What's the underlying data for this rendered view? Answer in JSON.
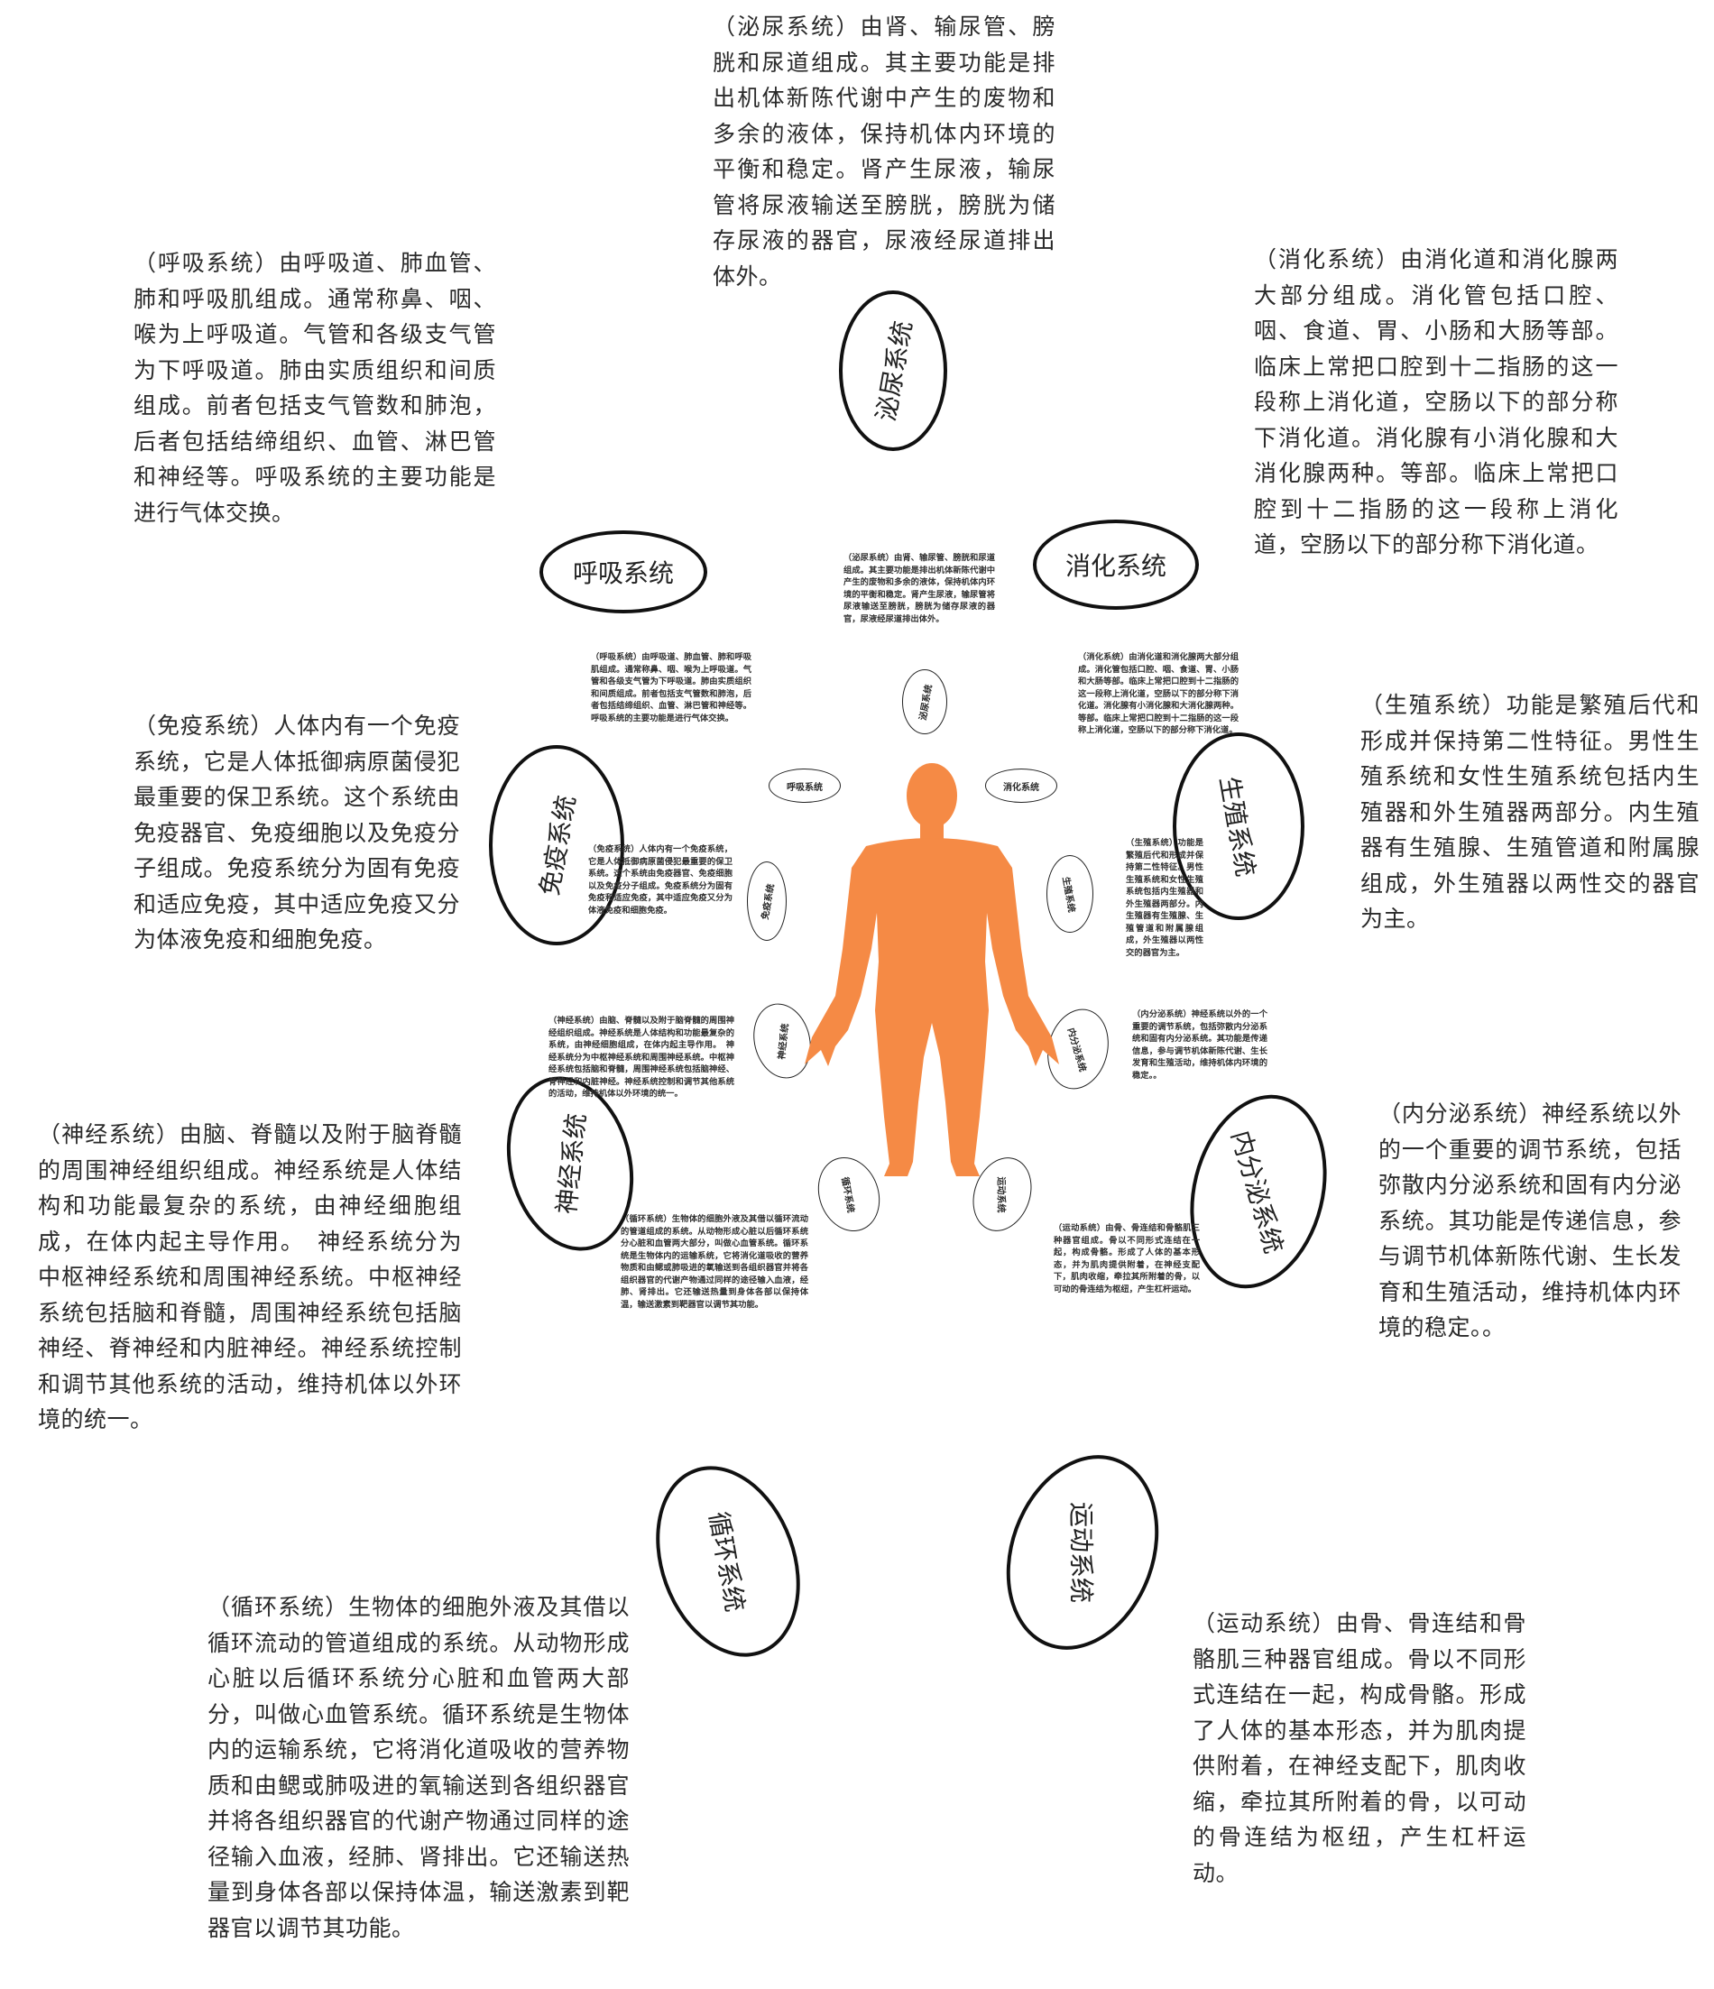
{
  "systems": {
    "urinary": {
      "label": "泌尿系统",
      "desc": "（泌尿系统）由肾、输尿管、膀胱和尿道组成。其主要功能是排出机体新陈代谢中产生的废物和多余的液体，保持机体内环境的平衡和稳定。肾产生尿液，输尿管将尿液输送至膀胱，膀胱为储存尿液的器官，尿液经尿道排出体外。"
    },
    "digestive": {
      "label": "消化系统",
      "desc": "（消化系统）由消化道和消化腺两大部分组成。消化管包括口腔、咽、食道、胃、小肠和大肠等部。临床上常把口腔到十二指肠的这一段称上消化道，空肠以下的部分称下消化道。消化腺有小消化腺和大消化腺两种。等部。临床上常把口腔到十二指肠的这一段称上消化道，空肠以下的部分称下消化道。"
    },
    "respiratory": {
      "label": "呼吸系统",
      "desc": "（呼吸系统）由呼吸道、肺血管、肺和呼吸肌组成。通常称鼻、咽、喉为上呼吸道。气管和各级支气管为下呼吸道。肺由实质组织和间质组成。前者包括支气管数和肺泡，后者包括结缔组织、血管、淋巴管和神经等。呼吸系统的主要功能是进行气体交换。"
    },
    "immune": {
      "label": "免疫系统",
      "desc": "（免疫系统）人体内有一个免疫系统，它是人体抵御病原菌侵犯最重要的保卫系统。这个系统由免疫器官、免疫细胞以及免疫分子组成。免疫系统分为固有免疫和适应免疫，其中适应免疫又分为体液免疫和细胞免疫。"
    },
    "reproductive": {
      "label": "生殖系统",
      "desc": "（生殖系统）功能是繁殖后代和形成并保持第二性特征。男性生殖系统和女性生殖系统包括内生殖器和外生殖器两部分。内生殖器有生殖腺、生殖管道和附属腺组成，外生殖器以两性交的器官为主。"
    },
    "nervous": {
      "label": "神经系统",
      "desc": "（神经系统）由脑、脊髓以及附于脑脊髓的周围神经组织组成。神经系统是人体结构和功能最复杂的系统，由神经细胞组成，在体内起主导作用。　神经系统分为中枢神经系统和周围神经系统。中枢神经系统包括脑和脊髓，周围神经系统包括脑神经、脊神经和内脏神经。神经系统控制和调节其他系统的活动，维持机体以外环境的统一。"
    },
    "endocrine": {
      "label": "内分泌系统",
      "desc": "（内分泌系统）神经系统以外的一个重要的调节系统，包括弥散内分泌系统和固有内分泌系统。其功能是传递信息，参与调节机体新陈代谢、生长发育和生殖活动，维持机体内环境的稳定。。"
    },
    "circulatory": {
      "label": "循环系统",
      "desc": "（循环系统）生物体的细胞外液及其借以循环流动的管道组成的系统。从动物形成心脏以后循环系统分心脏和血管两大部分，叫做心血管系统。循环系统是生物体内的运输系统，它将消化道吸收的营养物质和由鳃或肺吸进的氧输送到各组织器官并将各组织器官的代谢产物通过同样的途径输入血液，经肺、肾排出。它还输送热量到身体各部以保持体温，输送激素到靶器官以调节其功能。"
    },
    "motor": {
      "label": "运动系统",
      "desc": "（运动系统）由骨、骨连结和骨骼肌三种器官组成。骨以不同形式连结在一起，构成骨骼。形成了人体的基本形态，并为肌肉提供附着，在神经支配下，肌肉收缩，牵拉其所附着的骨，以可动的骨连结为枢纽，产生杠杆运动。"
    }
  },
  "colors": {
    "figure": "#F58A45",
    "border": "#111111"
  },
  "figure_icon": "human-body-silhouette"
}
